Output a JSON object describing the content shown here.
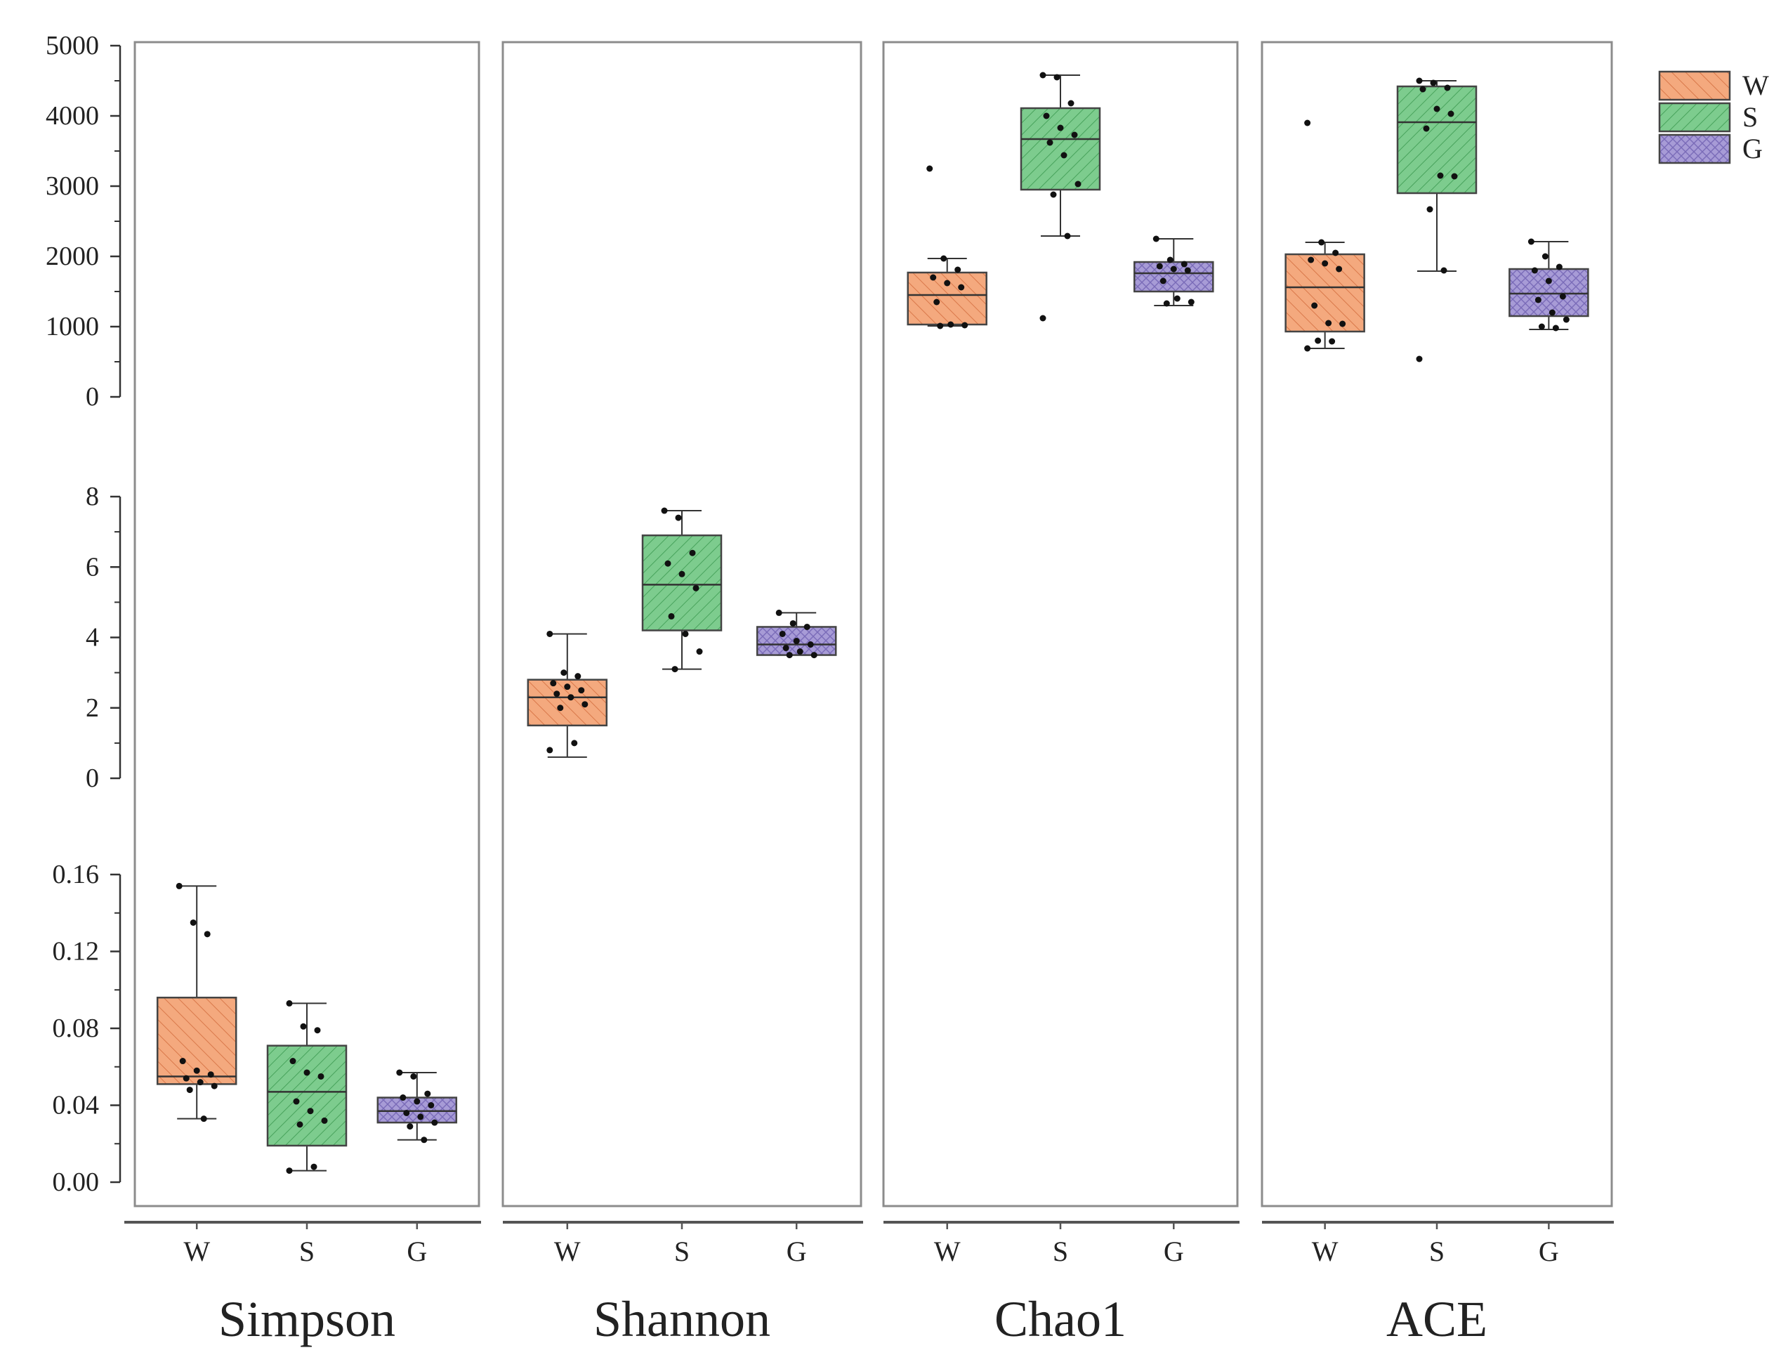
{
  "chart_data": {
    "type": "boxplot",
    "groups": [
      "W",
      "S",
      "G"
    ],
    "group_colors": {
      "W": "#f4a97e",
      "S": "#7dcc8e",
      "G": "#a79bd6"
    },
    "legend": {
      "placement": "top-right",
      "entries": [
        "W",
        "S",
        "G"
      ]
    },
    "panels": [
      {
        "name": "Simpson",
        "scale_row": "simpson",
        "boxes": [
          {
            "group": "W",
            "q1": 0.051,
            "median": 0.055,
            "q3": 0.096,
            "whisker_low": 0.033,
            "whisker_high": 0.154,
            "points": [
              0.154,
              0.135,
              0.129,
              0.063,
              0.058,
              0.056,
              0.054,
              0.052,
              0.05,
              0.048,
              0.033
            ]
          },
          {
            "group": "S",
            "q1": 0.019,
            "median": 0.047,
            "q3": 0.071,
            "whisker_low": 0.006,
            "whisker_high": 0.093,
            "points": [
              0.093,
              0.081,
              0.079,
              0.063,
              0.057,
              0.055,
              0.042,
              0.037,
              0.032,
              0.03,
              0.008,
              0.006
            ]
          },
          {
            "group": "G",
            "q1": 0.031,
            "median": 0.037,
            "q3": 0.044,
            "whisker_low": 0.022,
            "whisker_high": 0.057,
            "points": [
              0.057,
              0.055,
              0.046,
              0.044,
              0.042,
              0.04,
              0.036,
              0.034,
              0.031,
              0.029,
              0.022
            ]
          }
        ]
      },
      {
        "name": "Shannon",
        "scale_row": "shannon",
        "boxes": [
          {
            "group": "W",
            "q1": 1.5,
            "median": 2.3,
            "q3": 2.8,
            "whisker_low": 0.6,
            "whisker_high": 4.1,
            "points": [
              4.1,
              3.0,
              2.9,
              2.7,
              2.6,
              2.5,
              2.4,
              2.3,
              2.1,
              2.0,
              1.0,
              0.8
            ]
          },
          {
            "group": "S",
            "q1": 4.2,
            "median": 5.5,
            "q3": 6.9,
            "whisker_low": 3.1,
            "whisker_high": 7.6,
            "points": [
              7.6,
              7.4,
              6.4,
              6.1,
              5.8,
              5.4,
              4.6,
              4.1,
              3.6,
              3.1
            ]
          },
          {
            "group": "G",
            "q1": 3.5,
            "median": 3.8,
            "q3": 4.3,
            "whisker_low": 3.5,
            "whisker_high": 4.7,
            "points": [
              4.7,
              4.4,
              4.3,
              4.1,
              3.9,
              3.8,
              3.7,
              3.6,
              3.5,
              3.5
            ]
          }
        ]
      },
      {
        "name": "Chao1",
        "scale_row": "richness",
        "boxes": [
          {
            "group": "W",
            "q1": 1030,
            "median": 1450,
            "q3": 1770,
            "whisker_low": 1010,
            "whisker_high": 1970,
            "points": [
              3250,
              1970,
              1810,
              1700,
              1620,
              1560,
              1350,
              1030,
              1020,
              1010
            ]
          },
          {
            "group": "S",
            "q1": 2950,
            "median": 3670,
            "q3": 4110,
            "whisker_low": 2290,
            "whisker_high": 4580,
            "points": [
              4580,
              4550,
              4180,
              4000,
              3830,
              3730,
              3620,
              3440,
              3030,
              2880,
              2290,
              1120
            ]
          },
          {
            "group": "G",
            "q1": 1500,
            "median": 1760,
            "q3": 1920,
            "whisker_low": 1300,
            "whisker_high": 2250,
            "points": [
              2250,
              1950,
              1890,
              1860,
              1820,
              1800,
              1650,
              1400,
              1350,
              1330
            ]
          }
        ]
      },
      {
        "name": "ACE",
        "scale_row": "richness",
        "boxes": [
          {
            "group": "W",
            "q1": 930,
            "median": 1560,
            "q3": 2030,
            "whisker_low": 690,
            "whisker_high": 2200,
            "points": [
              3900,
              2200,
              2050,
              1950,
              1900,
              1820,
              1300,
              1050,
              1040,
              800,
              790,
              690
            ]
          },
          {
            "group": "S",
            "q1": 2900,
            "median": 3910,
            "q3": 4420,
            "whisker_low": 1790,
            "whisker_high": 4500,
            "points": [
              4500,
              4470,
              4400,
              4380,
              4100,
              4030,
              3820,
              3150,
              3140,
              2670,
              1800,
              540
            ]
          },
          {
            "group": "G",
            "q1": 1150,
            "median": 1470,
            "q3": 1820,
            "whisker_low": 960,
            "whisker_high": 2210,
            "points": [
              2210,
              2000,
              1850,
              1800,
              1650,
              1430,
              1380,
              1200,
              1100,
              1000,
              980
            ]
          }
        ]
      }
    ],
    "y_axes": [
      {
        "id": "richness",
        "ylim": [
          0,
          5000
        ],
        "ticks": [
          "0",
          "1000",
          "2000",
          "3000",
          "4000",
          "5000"
        ],
        "tick_values": [
          0,
          1000,
          2000,
          3000,
          4000,
          5000
        ]
      },
      {
        "id": "shannon",
        "ylim": [
          0,
          8
        ],
        "ticks": [
          "0",
          "2",
          "4",
          "6",
          "8"
        ],
        "tick_values": [
          0,
          2,
          4,
          6,
          8
        ]
      },
      {
        "id": "simpson",
        "ylim": [
          0,
          0.16
        ],
        "ticks": [
          "0.00",
          "0.04",
          "0.08",
          "0.12",
          "0.16"
        ],
        "tick_values": [
          0,
          0.04,
          0.08,
          0.12,
          0.16
        ]
      }
    ],
    "grid": false
  }
}
